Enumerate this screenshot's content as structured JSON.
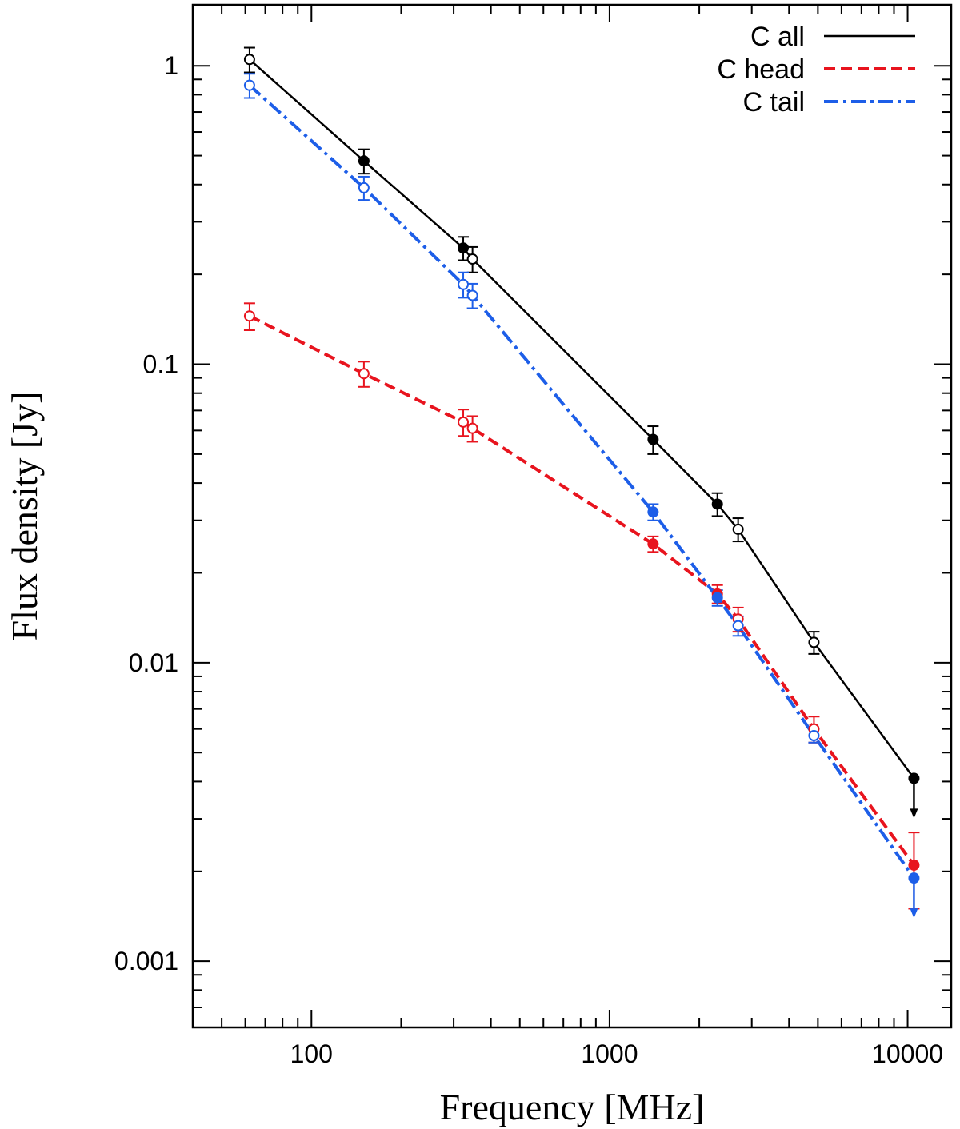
{
  "chart_data": {
    "type": "line",
    "title": "",
    "xlabel": "Frequency [MHz]",
    "ylabel": "Flux density [Jy]",
    "xscale": "log",
    "yscale": "log",
    "xlim": [
      40,
      14000
    ],
    "ylim": [
      0.0006,
      1.6
    ],
    "grid": false,
    "legend_position": "top-right",
    "x_ticks": [
      {
        "value": 100,
        "label": "100"
      },
      {
        "value": 1000,
        "label": "1000"
      },
      {
        "value": 10000,
        "label": "10000"
      }
    ],
    "y_ticks": [
      {
        "value": 0.001,
        "label": "0.001"
      },
      {
        "value": 0.01,
        "label": "0.01"
      },
      {
        "value": 0.1,
        "label": "0.1"
      },
      {
        "value": 1,
        "label": "1"
      }
    ],
    "series": [
      {
        "name": "C all",
        "color": "#000000",
        "dash": "solid",
        "points": [
          {
            "x": 62,
            "y": 1.05,
            "err": 0.1,
            "filled": false
          },
          {
            "x": 150,
            "y": 0.48,
            "err": 0.045,
            "filled": true
          },
          {
            "x": 323,
            "y": 0.245,
            "err": 0.022,
            "filled": true
          },
          {
            "x": 347,
            "y": 0.225,
            "err": 0.022,
            "filled": false
          },
          {
            "x": 1400,
            "y": 0.056,
            "err": 0.006,
            "filled": true
          },
          {
            "x": 2300,
            "y": 0.034,
            "err": 0.003,
            "filled": true
          },
          {
            "x": 2700,
            "y": 0.028,
            "err": 0.0025,
            "filled": false
          },
          {
            "x": 4850,
            "y": 0.0117,
            "err": 0.001,
            "filled": false
          },
          {
            "x": 10500,
            "y": 0.0041,
            "err": 0,
            "filled": true,
            "upper_limit": true
          }
        ]
      },
      {
        "name": "C head",
        "color": "#e8141e",
        "dash": "dashed",
        "points": [
          {
            "x": 62,
            "y": 0.145,
            "err": 0.015,
            "filled": false
          },
          {
            "x": 150,
            "y": 0.093,
            "err": 0.009,
            "filled": false
          },
          {
            "x": 323,
            "y": 0.064,
            "err": 0.0065,
            "filled": false
          },
          {
            "x": 347,
            "y": 0.061,
            "err": 0.006,
            "filled": false
          },
          {
            "x": 1400,
            "y": 0.025,
            "err": 0.0015,
            "filled": true
          },
          {
            "x": 2300,
            "y": 0.017,
            "err": 0.0012,
            "filled": true
          },
          {
            "x": 2700,
            "y": 0.014,
            "err": 0.0013,
            "filled": false
          },
          {
            "x": 4850,
            "y": 0.006,
            "err": 0.0006,
            "filled": false
          },
          {
            "x": 10500,
            "y": 0.0021,
            "err": 0.0006,
            "filled": true
          }
        ]
      },
      {
        "name": "C tail",
        "color": "#1d5ee8",
        "dash": "dashdot",
        "points": [
          {
            "x": 62,
            "y": 0.86,
            "err": 0.08,
            "filled": false
          },
          {
            "x": 150,
            "y": 0.39,
            "err": 0.035,
            "filled": false
          },
          {
            "x": 323,
            "y": 0.185,
            "err": 0.018,
            "filled": false
          },
          {
            "x": 347,
            "y": 0.17,
            "err": 0.016,
            "filled": false
          },
          {
            "x": 1400,
            "y": 0.032,
            "err": 0.002,
            "filled": true
          },
          {
            "x": 2300,
            "y": 0.0165,
            "err": 0.001,
            "filled": true
          },
          {
            "x": 2700,
            "y": 0.0133,
            "err": 0.001,
            "filled": false
          },
          {
            "x": 4850,
            "y": 0.0057,
            "err": 0.0003,
            "filled": false
          },
          {
            "x": 10500,
            "y": 0.0019,
            "err": 0,
            "filled": true,
            "upper_limit": true
          }
        ]
      }
    ]
  }
}
